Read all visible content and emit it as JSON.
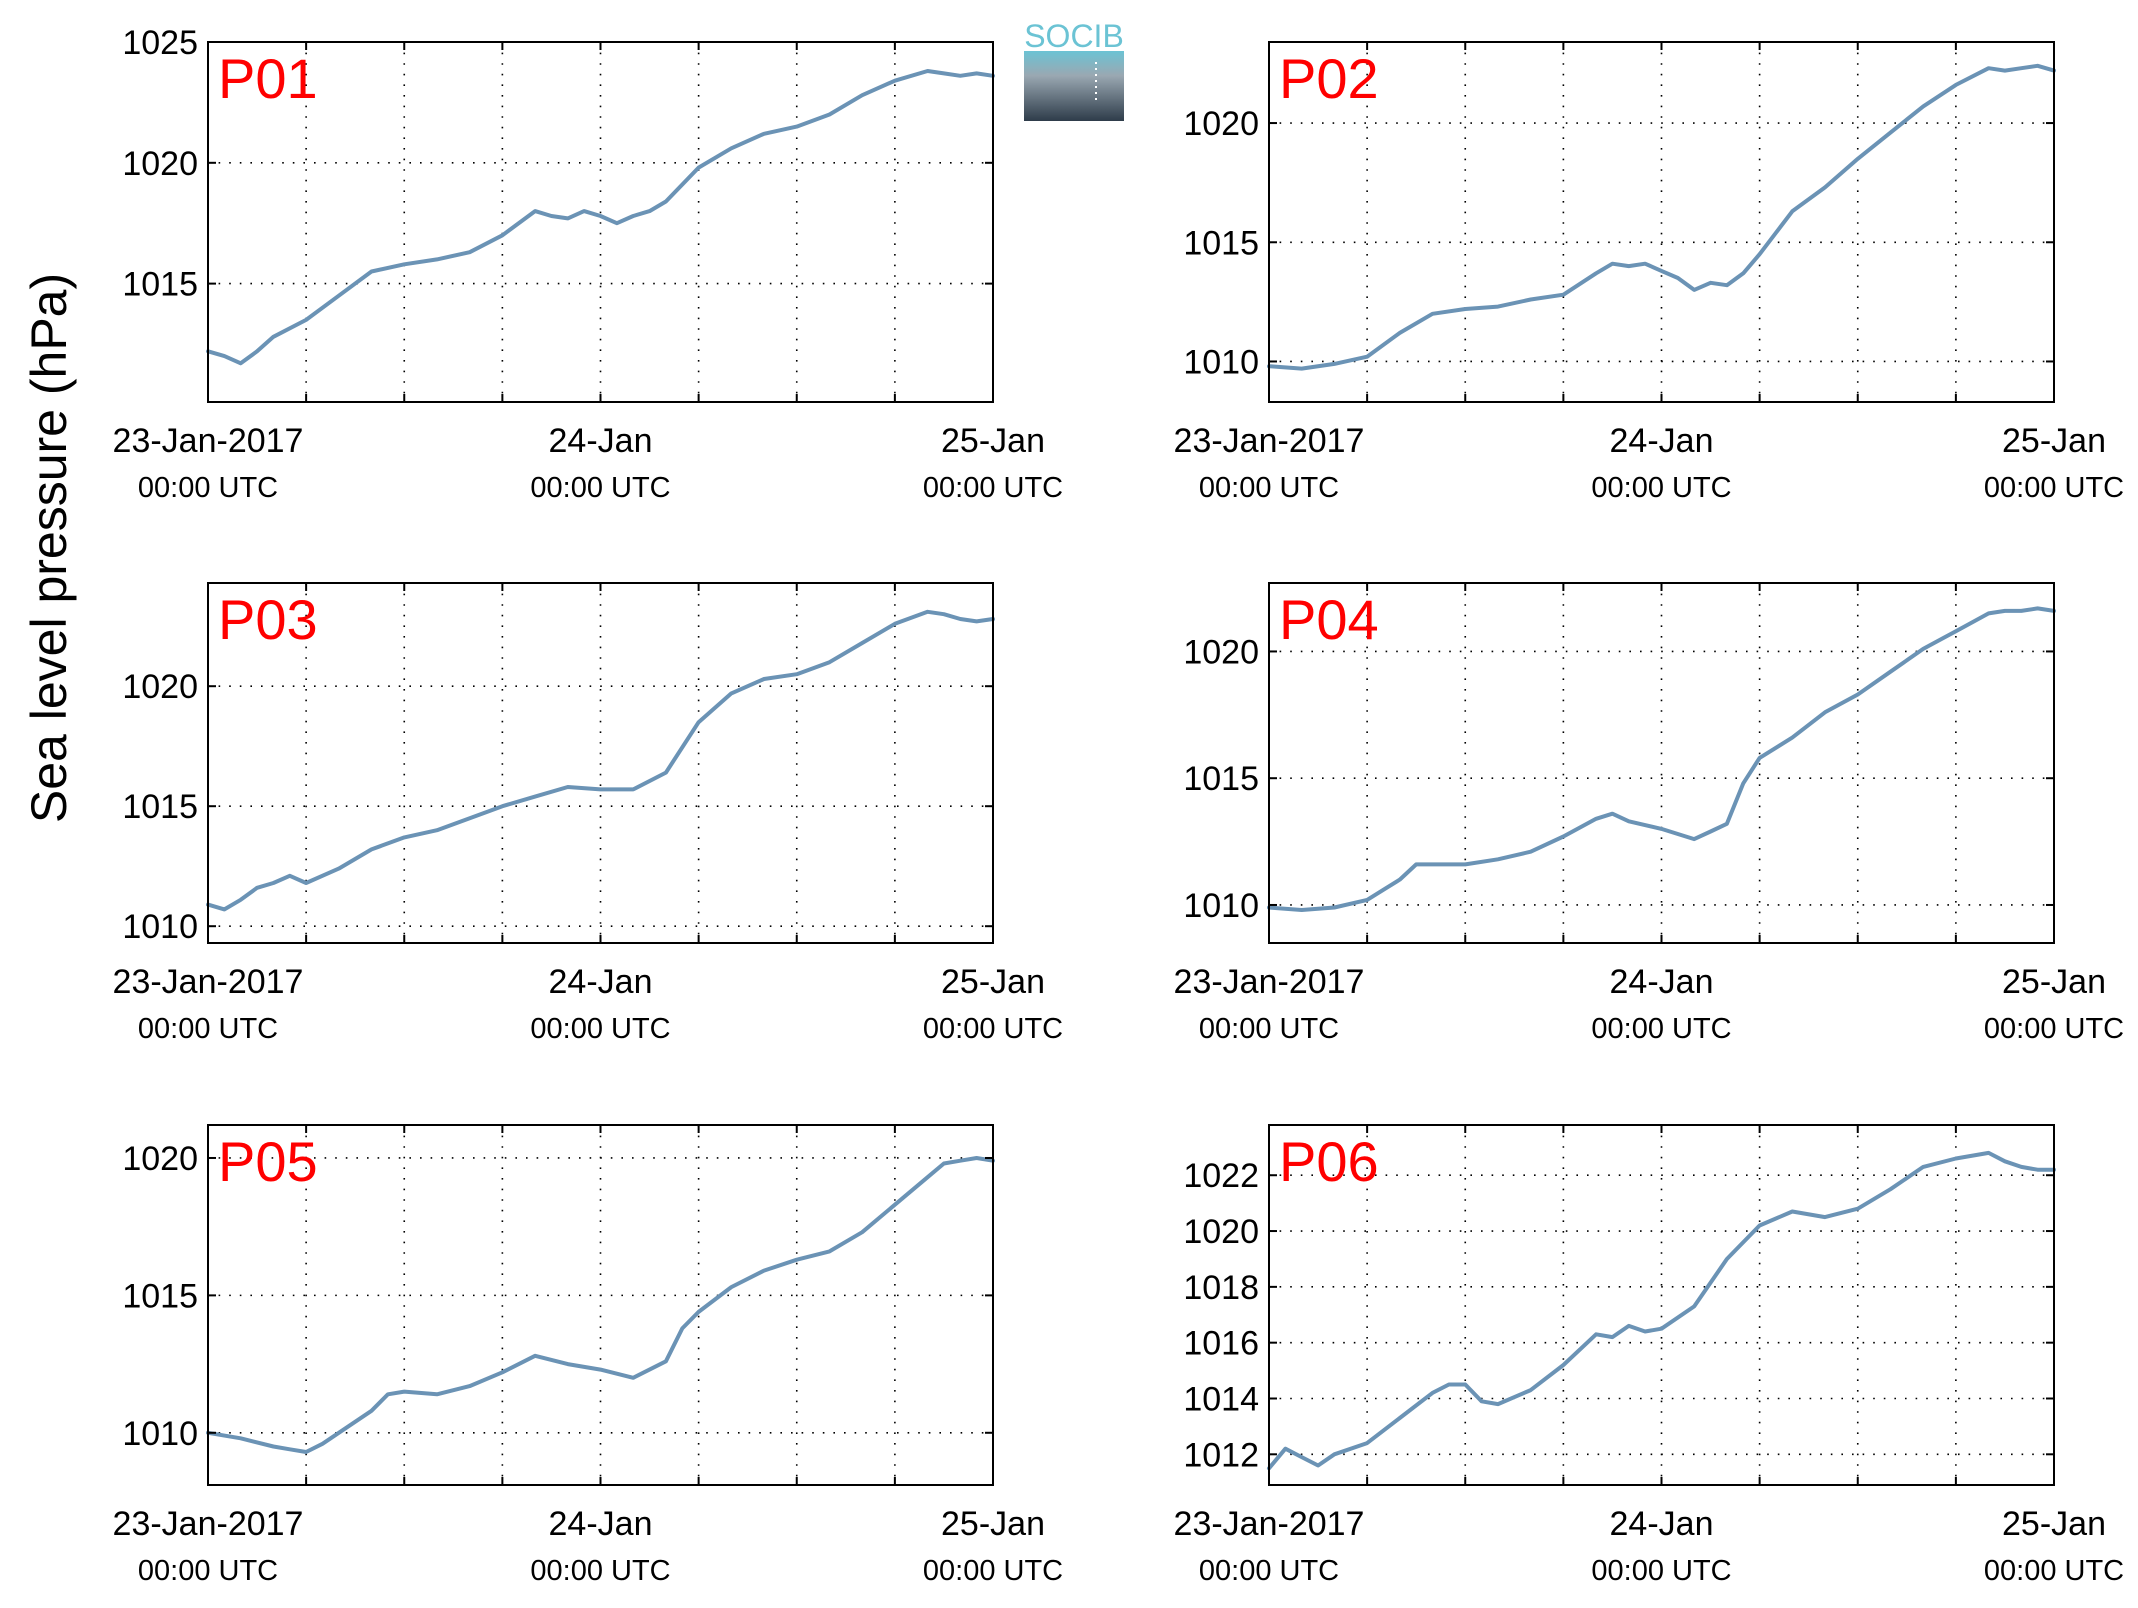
{
  "figure": {
    "ylabel": "Sea level pressure (hPa)",
    "logo_text": "SOCIB"
  },
  "colors": {
    "line": "#6b93b5",
    "station_label": "#ff0000",
    "axes": "#000000",
    "grid": "#000000",
    "logo_top": "#6bc3d4",
    "logo_bottom": "#2e3c4a"
  },
  "chart_data": [
    {
      "type": "line",
      "station": "P01",
      "x_tick_dates": [
        "23-Jan-2017",
        "24-Jan",
        "25-Jan"
      ],
      "x_tick_times": [
        "00:00 UTC",
        "00:00 UTC",
        "00:00 UTC"
      ],
      "xlim_hours": [
        0,
        48
      ],
      "ylim": [
        1010.1,
        1025
      ],
      "yticks": [
        1015,
        1020,
        1025
      ],
      "x": [
        0,
        1,
        2,
        3,
        4,
        6,
        8,
        10,
        12,
        14,
        16,
        18,
        20,
        21,
        22,
        23,
        24,
        25,
        26,
        27,
        28,
        30,
        32,
        34,
        36,
        38,
        40,
        42,
        44,
        45,
        46,
        47,
        48
      ],
      "values": [
        1012.2,
        1012.0,
        1011.7,
        1012.2,
        1012.8,
        1013.5,
        1014.5,
        1015.5,
        1015.8,
        1016.0,
        1016.3,
        1017.0,
        1018.0,
        1017.8,
        1017.7,
        1018.0,
        1017.8,
        1017.5,
        1017.8,
        1018.0,
        1018.4,
        1019.8,
        1020.6,
        1021.2,
        1021.5,
        1022.0,
        1022.8,
        1023.4,
        1023.8,
        1023.7,
        1023.6,
        1023.7,
        1023.6
      ],
      "grid": true
    },
    {
      "type": "line",
      "station": "P02",
      "x_tick_dates": [
        "23-Jan-2017",
        "24-Jan",
        "25-Jan"
      ],
      "x_tick_times": [
        "00:00 UTC",
        "00:00 UTC",
        "00:00 UTC"
      ],
      "xlim_hours": [
        0,
        48
      ],
      "ylim": [
        1008.3,
        1023.4
      ],
      "yticks": [
        1010,
        1015,
        1020
      ],
      "x": [
        0,
        2,
        4,
        6,
        8,
        10,
        12,
        14,
        16,
        18,
        20,
        21,
        22,
        23,
        24,
        25,
        26,
        27,
        28,
        29,
        30,
        32,
        34,
        36,
        38,
        40,
        42,
        44,
        45,
        46,
        47,
        48
      ],
      "values": [
        1009.8,
        1009.7,
        1009.9,
        1010.2,
        1011.2,
        1012.0,
        1012.2,
        1012.3,
        1012.6,
        1012.8,
        1013.7,
        1014.1,
        1014.0,
        1014.1,
        1013.8,
        1013.5,
        1013.0,
        1013.3,
        1013.2,
        1013.7,
        1014.5,
        1016.3,
        1017.3,
        1018.5,
        1019.6,
        1020.7,
        1021.6,
        1022.3,
        1022.2,
        1022.3,
        1022.4,
        1022.2
      ],
      "grid": true
    },
    {
      "type": "line",
      "station": "P03",
      "x_tick_dates": [
        "23-Jan-2017",
        "24-Jan",
        "25-Jan"
      ],
      "x_tick_times": [
        "00:00 UTC",
        "00:00 UTC",
        "00:00 UTC"
      ],
      "xlim_hours": [
        0,
        48
      ],
      "ylim": [
        1009.3,
        1024.3
      ],
      "yticks": [
        1010,
        1015,
        1020
      ],
      "x": [
        0,
        1,
        2,
        3,
        4,
        5,
        6,
        8,
        10,
        12,
        14,
        16,
        18,
        20,
        22,
        24,
        26,
        28,
        30,
        32,
        34,
        36,
        38,
        40,
        42,
        44,
        45,
        46,
        47,
        48
      ],
      "values": [
        1010.9,
        1010.7,
        1011.1,
        1011.6,
        1011.8,
        1012.1,
        1011.8,
        1012.4,
        1013.2,
        1013.7,
        1014.0,
        1014.5,
        1015.0,
        1015.4,
        1015.8,
        1015.7,
        1015.7,
        1016.4,
        1018.5,
        1019.7,
        1020.3,
        1020.5,
        1021.0,
        1021.8,
        1022.6,
        1023.1,
        1023.0,
        1022.8,
        1022.7,
        1022.8
      ],
      "grid": true
    },
    {
      "type": "line",
      "station": "P04",
      "x_tick_dates": [
        "23-Jan-2017",
        "24-Jan",
        "25-Jan"
      ],
      "x_tick_times": [
        "00:00 UTC",
        "00:00 UTC",
        "00:00 UTC"
      ],
      "xlim_hours": [
        0,
        48
      ],
      "ylim": [
        1008.5,
        1022.7
      ],
      "yticks": [
        1010,
        1015,
        1020
      ],
      "x": [
        0,
        2,
        4,
        6,
        8,
        9,
        10,
        12,
        14,
        16,
        18,
        20,
        21,
        22,
        24,
        26,
        27,
        28,
        29,
        30,
        32,
        34,
        36,
        38,
        40,
        42,
        44,
        45,
        46,
        47,
        48
      ],
      "values": [
        1009.9,
        1009.8,
        1009.9,
        1010.2,
        1011.0,
        1011.6,
        1011.6,
        1011.6,
        1011.8,
        1012.1,
        1012.7,
        1013.4,
        1013.6,
        1013.3,
        1013.0,
        1012.6,
        1012.9,
        1013.2,
        1014.8,
        1015.8,
        1016.6,
        1017.6,
        1018.3,
        1019.2,
        1020.1,
        1020.8,
        1021.5,
        1021.6,
        1021.6,
        1021.7,
        1021.6
      ],
      "grid": true
    },
    {
      "type": "line",
      "station": "P05",
      "x_tick_dates": [
        "23-Jan-2017",
        "24-Jan",
        "25-Jan"
      ],
      "x_tick_times": [
        "00:00 UTC",
        "00:00 UTC",
        "00:00 UTC"
      ],
      "xlim_hours": [
        0,
        48
      ],
      "ylim": [
        1008.1,
        1021.2
      ],
      "yticks": [
        1010,
        1015,
        1020
      ],
      "x": [
        0,
        2,
        4,
        5,
        6,
        7,
        8,
        10,
        11,
        12,
        14,
        16,
        18,
        20,
        22,
        24,
        26,
        28,
        29,
        30,
        32,
        34,
        36,
        38,
        40,
        42,
        44,
        45,
        46,
        47,
        48
      ],
      "values": [
        1010.0,
        1009.8,
        1009.5,
        1009.4,
        1009.3,
        1009.6,
        1010.0,
        1010.8,
        1011.4,
        1011.5,
        1011.4,
        1011.7,
        1012.2,
        1012.8,
        1012.5,
        1012.3,
        1012.0,
        1012.6,
        1013.8,
        1014.4,
        1015.3,
        1015.9,
        1016.3,
        1016.6,
        1017.3,
        1018.3,
        1019.3,
        1019.8,
        1019.9,
        1020.0,
        1019.9
      ],
      "grid": true
    },
    {
      "type": "line",
      "station": "P06",
      "x_tick_dates": [
        "23-Jan-2017",
        "24-Jan",
        "25-Jan"
      ],
      "x_tick_times": [
        "00:00 UTC",
        "00:00 UTC",
        "00:00 UTC"
      ],
      "xlim_hours": [
        0,
        48
      ],
      "ylim": [
        1010.9,
        1023.8
      ],
      "yticks": [
        1012,
        1014,
        1016,
        1018,
        1020,
        1022
      ],
      "x": [
        0,
        1,
        2,
        3,
        4,
        6,
        8,
        10,
        11,
        12,
        13,
        14,
        16,
        18,
        20,
        21,
        22,
        23,
        24,
        26,
        28,
        30,
        32,
        34,
        36,
        38,
        40,
        42,
        44,
        45,
        46,
        47,
        48
      ],
      "values": [
        1011.5,
        1012.2,
        1011.9,
        1011.6,
        1012.0,
        1012.4,
        1013.3,
        1014.2,
        1014.5,
        1014.5,
        1013.9,
        1013.8,
        1014.3,
        1015.2,
        1016.3,
        1016.2,
        1016.6,
        1016.4,
        1016.5,
        1017.3,
        1019.0,
        1020.2,
        1020.7,
        1020.5,
        1020.8,
        1021.5,
        1022.3,
        1022.6,
        1022.8,
        1022.5,
        1022.3,
        1022.2,
        1022.2
      ],
      "grid": true
    }
  ]
}
